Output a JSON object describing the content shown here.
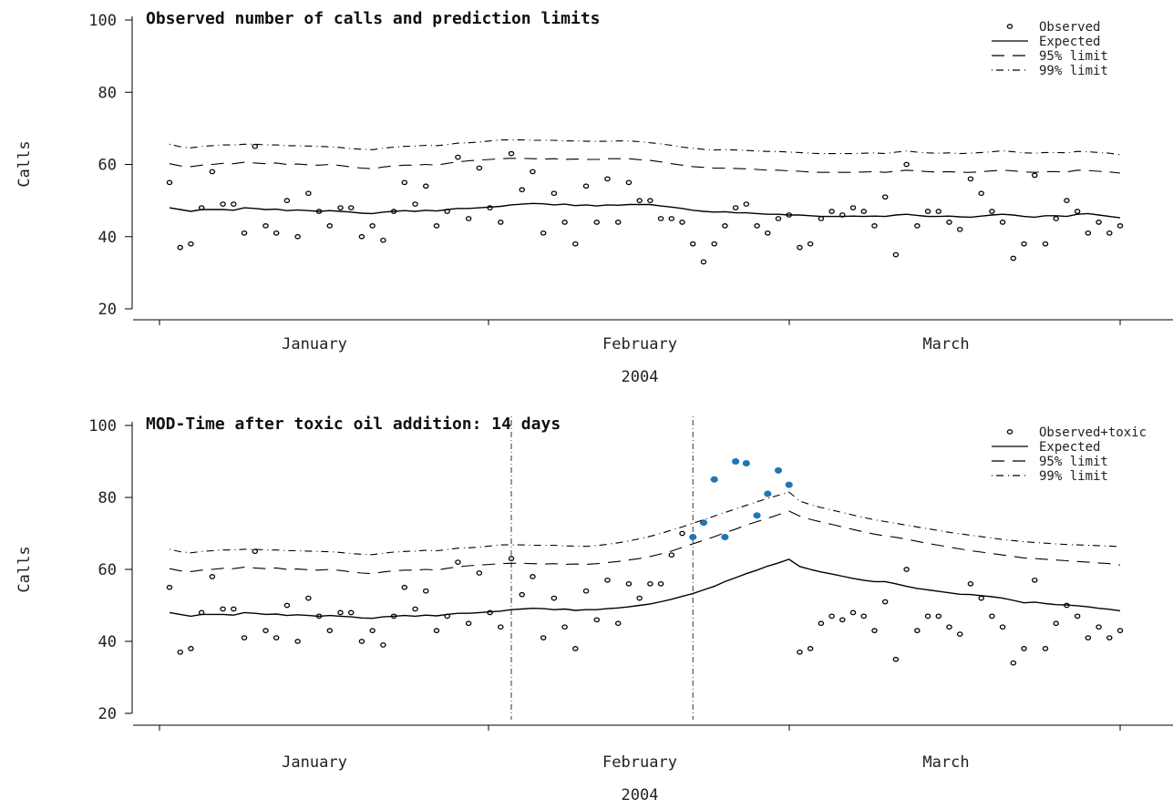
{
  "chart_data": [
    {
      "type": "line",
      "title": "Observed number of calls and prediction limits",
      "xlabel": "2004",
      "ylabel": "Calls",
      "ylim": [
        20,
        100
      ],
      "yticks": [
        20,
        40,
        60,
        80,
        100
      ],
      "xtick_labels": [
        "January",
        "February",
        "March"
      ],
      "grid": false,
      "legend_position": "top-right",
      "series": [
        {
          "name": "Observed",
          "style": "points",
          "values": [
            55,
            37,
            38,
            48,
            58,
            49,
            49,
            41,
            65,
            43,
            41,
            50,
            40,
            52,
            47,
            43,
            48,
            48,
            40,
            43,
            39,
            47,
            55,
            49,
            54,
            43,
            47,
            62,
            45,
            59,
            48,
            44,
            63,
            53,
            58,
            41,
            52,
            44,
            38,
            54,
            44,
            56,
            44,
            55,
            50,
            50,
            45,
            45,
            44,
            38,
            33,
            38,
            43,
            48,
            49,
            43,
            41,
            45,
            46,
            37,
            38,
            45,
            47,
            46,
            48,
            47,
            43,
            51,
            35,
            60,
            43,
            47,
            47,
            44,
            42,
            56,
            52,
            47,
            44,
            34,
            38,
            57,
            38,
            45,
            50,
            47,
            41,
            44,
            41,
            43
          ]
        },
        {
          "name": "Expected",
          "style": "solid",
          "values": [
            48,
            47.5,
            47,
            47.5,
            47.5,
            47.5,
            47.3,
            48,
            47.8,
            47.5,
            47.6,
            47.2,
            47.4,
            47.2,
            47,
            47.2,
            47,
            46.8,
            46.5,
            46.4,
            46.8,
            47,
            47.2,
            47,
            47.3,
            47.1,
            47.5,
            47.8,
            47.8,
            48,
            48.2,
            48.4,
            48.8,
            49,
            49.2,
            49.1,
            48.8,
            49,
            48.6,
            48.8,
            48.5,
            48.8,
            48.7,
            48.9,
            48.9,
            48.9,
            48.5,
            48.2,
            47.8,
            47.3,
            47,
            46.8,
            46.9,
            46.6,
            46.6,
            46.4,
            46.2,
            46.2,
            46,
            46,
            45.8,
            45.6,
            45.6,
            45.6,
            45.7,
            45.6,
            45.7,
            45.6,
            46,
            46.2,
            45.9,
            45.6,
            45.6,
            45.7,
            45.5,
            45.4,
            45.7,
            46,
            46.2,
            46,
            45.6,
            45.4,
            45.8,
            45.8,
            45.6,
            46.2,
            46.4,
            46,
            45.6,
            45.2
          ]
        },
        {
          "name": "95% limit",
          "style": "dashed",
          "values": [
            60.2,
            59.6,
            59.4,
            59.8,
            60,
            60.3,
            60.2,
            60.6,
            60.4,
            60.2,
            60.4,
            60,
            60.1,
            59.9,
            59.8,
            60,
            59.7,
            59.3,
            59,
            58.8,
            59.3,
            59.6,
            59.8,
            59.8,
            60,
            59.8,
            60.3,
            60.7,
            61,
            61.2,
            61.4,
            61.6,
            61.7,
            61.7,
            61.6,
            61.5,
            61.6,
            61.4,
            61.5,
            61.4,
            61.4,
            61.6,
            61.6,
            61.6,
            61.3,
            61.1,
            60.7,
            60.2,
            59.8,
            59.4,
            59.2,
            59,
            59,
            58.9,
            58.8,
            58.6,
            58.4,
            58.4,
            58.2,
            58.1,
            57.9,
            57.8,
            57.8,
            57.8,
            57.8,
            57.9,
            58,
            57.8,
            58.1,
            58.4,
            58.2,
            58,
            57.9,
            58,
            57.8,
            57.8,
            58,
            58.2,
            58.4,
            58.2,
            57.9,
            57.8,
            58,
            58,
            57.9,
            58.4,
            58.3,
            58.1,
            57.9,
            57.6
          ]
        },
        {
          "name": "99% limit",
          "style": "dotdash",
          "values": [
            65.6,
            64.9,
            64.6,
            65,
            65.2,
            65.4,
            65.4,
            65.6,
            65.6,
            65.4,
            65.4,
            65.2,
            65.2,
            65.1,
            65,
            64.9,
            64.7,
            64.4,
            64.2,
            64.1,
            64.5,
            64.8,
            65,
            65.1,
            65.3,
            65.2,
            65.5,
            65.9,
            66,
            66.2,
            66.5,
            66.8,
            66.8,
            66.8,
            66.7,
            66.7,
            66.7,
            66.5,
            66.5,
            66.4,
            66.4,
            66.4,
            66.5,
            66.5,
            66.3,
            66,
            65.7,
            65.3,
            64.8,
            64.5,
            64.2,
            64,
            64.1,
            64,
            63.9,
            63.7,
            63.6,
            63.6,
            63.4,
            63.3,
            63.1,
            63,
            63,
            63,
            63,
            63.1,
            63.2,
            63,
            63.4,
            63.7,
            63.4,
            63.2,
            63.1,
            63.2,
            63,
            63.1,
            63.3,
            63.5,
            63.8,
            63.5,
            63.2,
            63.1,
            63.3,
            63.3,
            63.2,
            63.6,
            63.5,
            63.3,
            63.1,
            62.7
          ]
        }
      ]
    },
    {
      "type": "line",
      "title": "MOD-Time after toxic oil addition: 14 days",
      "xlabel": "2004",
      "ylabel": "Calls",
      "ylim": [
        20,
        100
      ],
      "yticks": [
        20,
        40,
        60,
        80,
        100
      ],
      "xtick_labels": [
        "January",
        "February",
        "March"
      ],
      "grid": false,
      "legend_position": "top-right",
      "vertical_markers_day_index": [
        32,
        49
      ],
      "highlight_color": "#1f77b4",
      "series": [
        {
          "name": "Observed+toxic",
          "style": "points",
          "values": [
            55,
            37,
            38,
            48,
            58,
            49,
            49,
            41,
            65,
            43,
            41,
            50,
            40,
            52,
            47,
            43,
            48,
            48,
            40,
            43,
            39,
            47,
            55,
            49,
            54,
            43,
            47,
            62,
            45,
            59,
            48,
            44,
            63,
            53,
            58,
            41,
            52,
            44,
            38,
            54,
            46,
            57,
            45,
            56,
            52,
            56,
            56,
            64,
            70,
            69,
            73,
            85,
            69,
            90,
            89.5,
            75,
            81,
            87.5,
            83.5,
            37,
            38,
            45,
            47,
            46,
            48,
            47,
            43,
            51,
            35,
            60,
            43,
            47,
            47,
            44,
            42,
            56,
            52,
            47,
            44,
            34,
            38,
            57,
            38,
            45,
            50,
            47,
            41,
            44,
            41,
            43
          ]
        },
        {
          "name": "Expected",
          "style": "solid",
          "values": [
            48,
            47.5,
            47,
            47.5,
            47.5,
            47.5,
            47.3,
            48,
            47.8,
            47.5,
            47.6,
            47.2,
            47.4,
            47.2,
            47,
            47.2,
            47,
            46.8,
            46.5,
            46.4,
            46.8,
            47,
            47.2,
            47,
            47.3,
            47.1,
            47.5,
            47.8,
            47.8,
            48,
            48.2,
            48.4,
            48.8,
            49,
            49.2,
            49.1,
            48.8,
            49,
            48.6,
            48.8,
            48.8,
            49.1,
            49.3,
            49.6,
            50,
            50.4,
            51,
            51.7,
            52.5,
            53.3,
            54.3,
            55.3,
            56.6,
            57.7,
            58.8,
            59.8,
            60.9,
            61.8,
            62.8,
            60.8,
            60,
            59.3,
            58.7,
            58.1,
            57.5,
            57,
            56.6,
            56.6,
            56,
            55.3,
            54.7,
            54.3,
            53.9,
            53.5,
            53.1,
            53,
            52.7,
            52.4,
            52,
            51.4,
            50.7,
            50.9,
            50.5,
            50.2,
            50.1,
            49.9,
            49.6,
            49.2,
            48.9,
            48.5
          ]
        },
        {
          "name": "95% limit",
          "style": "dashed",
          "values": [
            60.2,
            59.6,
            59.4,
            59.8,
            60,
            60.3,
            60.2,
            60.6,
            60.4,
            60.2,
            60.4,
            60,
            60.1,
            59.9,
            59.8,
            60,
            59.7,
            59.3,
            59,
            58.8,
            59.3,
            59.6,
            59.8,
            59.8,
            60,
            59.8,
            60.3,
            60.7,
            61,
            61.2,
            61.4,
            61.6,
            61.7,
            61.7,
            61.6,
            61.5,
            61.6,
            61.4,
            61.5,
            61.4,
            61.6,
            61.9,
            62.2,
            62.6,
            63,
            63.6,
            64.3,
            65.1,
            66.1,
            67.1,
            68.1,
            69.1,
            70.2,
            71.2,
            72.3,
            73.3,
            74.2,
            75.2,
            76.2,
            74.8,
            73.9,
            73.2,
            72.5,
            71.8,
            71.1,
            70.4,
            69.8,
            69.3,
            68.9,
            68.4,
            67.8,
            67.2,
            66.7,
            66.2,
            65.7,
            65.2,
            64.8,
            64.4,
            64,
            63.6,
            63.2,
            63,
            62.8,
            62.6,
            62.4,
            62.2,
            62,
            61.8,
            61.6,
            61.2
          ]
        },
        {
          "name": "99% limit",
          "style": "dotdash",
          "values": [
            65.6,
            64.9,
            64.6,
            65,
            65.2,
            65.4,
            65.4,
            65.6,
            65.6,
            65.4,
            65.4,
            65.2,
            65.2,
            65.1,
            65,
            64.9,
            64.7,
            64.4,
            64.2,
            64.1,
            64.5,
            64.8,
            65,
            65.1,
            65.3,
            65.2,
            65.5,
            65.9,
            66,
            66.2,
            66.5,
            66.8,
            66.8,
            66.8,
            66.7,
            66.7,
            66.7,
            66.5,
            66.5,
            66.4,
            66.6,
            67,
            67.4,
            67.9,
            68.5,
            69.2,
            70,
            70.9,
            71.8,
            72.8,
            73.8,
            74.8,
            75.8,
            76.8,
            77.8,
            78.8,
            79.7,
            80.6,
            81.5,
            79,
            78,
            77.2,
            76.5,
            75.8,
            75.1,
            74.4,
            73.8,
            73.3,
            72.8,
            72.3,
            71.8,
            71.3,
            70.8,
            70.3,
            69.9,
            69.5,
            69.1,
            68.7,
            68.3,
            68,
            67.7,
            67.5,
            67.3,
            67.1,
            66.9,
            66.8,
            66.7,
            66.6,
            66.5,
            66.3
          ]
        }
      ]
    }
  ]
}
